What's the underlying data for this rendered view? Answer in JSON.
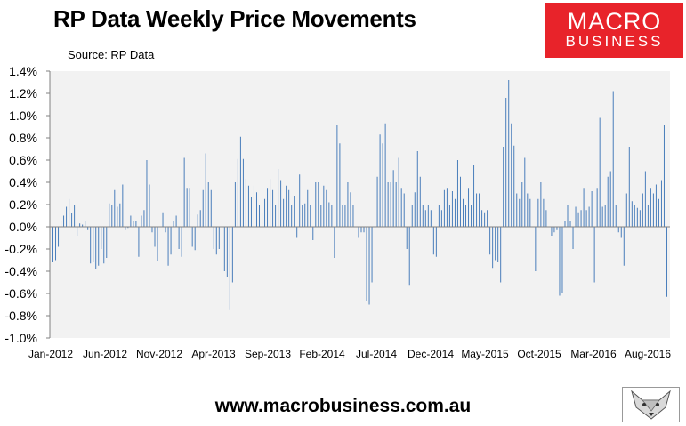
{
  "header": {
    "title": "RP Data Weekly Price Movements",
    "source": "Source: RP Data"
  },
  "logo": {
    "line1": "MACRO",
    "line2": "BUSINESS"
  },
  "footer": {
    "url": "www.macrobusiness.com.au"
  },
  "fox_icon": "fox-head-icon",
  "colors": {
    "bar": "#4a7ebb",
    "plot_bg": "#f2f2f2",
    "logo_bg": "#e8232a"
  },
  "chart_data": {
    "type": "bar",
    "title": "RP Data Weekly Price Movements",
    "xlabel": "",
    "ylabel": "",
    "ylim": [
      -1.0,
      1.4
    ],
    "y_ticks": [
      "1.4%",
      "1.2%",
      "1.0%",
      "0.8%",
      "0.6%",
      "0.4%",
      "0.2%",
      "0.0%",
      "-0.2%",
      "-0.4%",
      "-0.6%",
      "-0.8%",
      "-1.0%"
    ],
    "x_ticks": [
      "Jan-2012",
      "Jun-2012",
      "Nov-2012",
      "Apr-2013",
      "Sep-2013",
      "Feb-2014",
      "Jul-2014",
      "Dec-2014",
      "May-2015",
      "Oct-2015",
      "Mar-2016",
      "Aug-2016"
    ],
    "grid": false,
    "legend": "none",
    "series": [
      {
        "values": [
          -0.32,
          -0.3,
          -0.18,
          0.05,
          0.1,
          0.18,
          0.25,
          0.12,
          0.2,
          -0.08,
          0.03,
          0.02,
          0.05,
          -0.03,
          -0.33,
          -0.32,
          -0.38,
          -0.35,
          -0.2,
          -0.33,
          -0.28,
          0.21,
          0.2,
          0.33,
          0.18,
          0.21,
          0.38,
          -0.03,
          -0.01,
          0.1,
          0.05,
          0.05,
          -0.27,
          0.1,
          0.15,
          0.6,
          0.38,
          -0.05,
          -0.18,
          -0.31,
          0.0,
          0.13,
          -0.05,
          -0.35,
          -0.25,
          0.05,
          0.1,
          -0.2,
          -0.27,
          0.62,
          0.35,
          0.35,
          -0.18,
          -0.21,
          0.11,
          0.15,
          0.33,
          0.66,
          0.4,
          0.33,
          -0.2,
          -0.25,
          -0.2,
          0.0,
          -0.4,
          -0.45,
          -0.75,
          -0.5,
          0.4,
          0.61,
          0.81,
          0.61,
          0.43,
          0.37,
          0.27,
          0.37,
          0.31,
          0.2,
          0.12,
          0.25,
          0.35,
          0.43,
          0.33,
          0.2,
          0.52,
          0.42,
          0.25,
          0.37,
          0.33,
          0.2,
          0.28,
          -0.1,
          0.47,
          0.2,
          0.21,
          0.33,
          0.2,
          -0.12,
          0.4,
          0.4,
          0.2,
          0.37,
          0.33,
          0.22,
          0.2,
          -0.28,
          0.92,
          0.75,
          0.2,
          0.2,
          0.4,
          0.31,
          0.2,
          0.0,
          -0.1,
          -0.05,
          -0.05,
          -0.67,
          -0.7,
          -0.5,
          0.0,
          0.45,
          0.83,
          0.75,
          0.93,
          0.4,
          0.4,
          0.51,
          0.4,
          0.62,
          0.35,
          0.3,
          -0.2,
          -0.53,
          0.2,
          0.31,
          0.68,
          0.45,
          0.2,
          0.15,
          0.2,
          0.15,
          -0.25,
          -0.27,
          0.2,
          0.15,
          0.33,
          0.35,
          0.2,
          0.32,
          0.25,
          0.6,
          0.45,
          0.25,
          0.2,
          0.35,
          0.2,
          0.56,
          0.3,
          0.3,
          0.15,
          0.13,
          0.15,
          -0.25,
          -0.37,
          -0.3,
          -0.32,
          -0.5,
          0.72,
          1.16,
          1.32,
          0.93,
          0.73,
          0.3,
          0.25,
          0.4,
          0.62,
          0.3,
          0.25,
          0.0,
          -0.4,
          0.25,
          0.4,
          0.25,
          0.15,
          0.0,
          -0.08,
          -0.05,
          -0.03,
          -0.62,
          -0.6,
          0.05,
          0.2,
          0.05,
          -0.2,
          0.18,
          0.13,
          0.15,
          0.35,
          0.15,
          0.18,
          0.32,
          -0.5,
          0.35,
          0.98,
          0.18,
          0.2,
          0.45,
          0.5,
          1.22,
          0.2,
          -0.05,
          -0.1,
          -0.35,
          0.3,
          0.72,
          0.23,
          0.2,
          0.17,
          0.15,
          0.3,
          0.5,
          0.2,
          0.35,
          0.3,
          0.38,
          0.25,
          0.42,
          0.92,
          -0.63
        ]
      }
    ]
  }
}
